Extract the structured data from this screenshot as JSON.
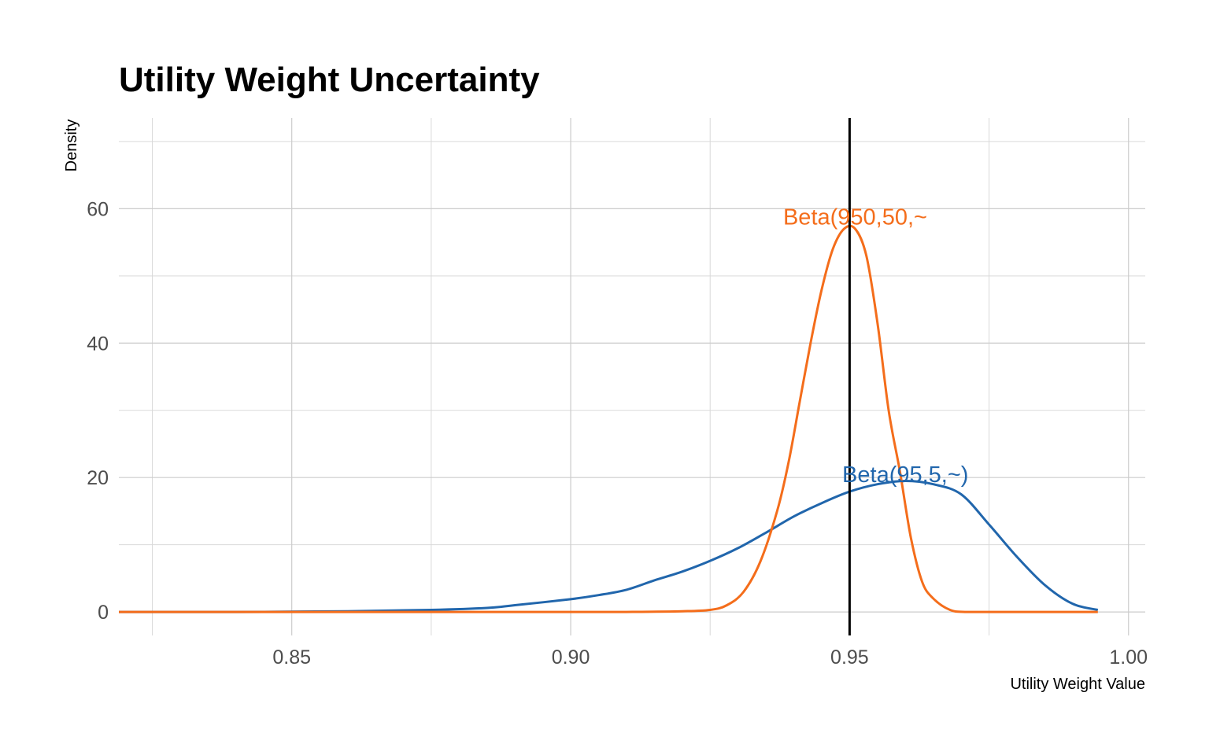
{
  "chart_data": {
    "type": "line",
    "title": "Utility Weight Uncertainty",
    "xlabel": "Utility Weight Value",
    "ylabel": "Density",
    "xlim": [
      0.819,
      1.003
    ],
    "ylim": [
      -3.5,
      73.5
    ],
    "x_ticks": [
      0.85,
      0.9,
      0.95,
      1.0
    ],
    "x_tick_labels": [
      "0.85",
      "0.90",
      "0.95",
      "1.00"
    ],
    "y_ticks": [
      0,
      20,
      40,
      60
    ],
    "y_tick_labels": [
      "0",
      "20",
      "40",
      "60"
    ],
    "grid": true,
    "legend": "none",
    "vline": {
      "x": 0.95,
      "color": "#000000"
    },
    "series": [
      {
        "label": "Beta(95,5,~)",
        "color": "#2166ac",
        "label_x": 0.96,
        "label_y": 20.5,
        "x": [
          0.819,
          0.84,
          0.86,
          0.875,
          0.885,
          0.89,
          0.9,
          0.905,
          0.91,
          0.915,
          0.92,
          0.925,
          0.93,
          0.935,
          0.94,
          0.945,
          0.95,
          0.955,
          0.96,
          0.965,
          0.97,
          0.975,
          0.98,
          0.985,
          0.99,
          0.9945
        ],
        "y": [
          0,
          0,
          0.1,
          0.3,
          0.6,
          1.0,
          1.9,
          2.5,
          3.3,
          4.7,
          6.0,
          7.6,
          9.5,
          11.8,
          14.2,
          16.2,
          17.9,
          19.0,
          19.5,
          19.0,
          17.5,
          13.0,
          8.2,
          4.0,
          1.2,
          0.3
        ]
      },
      {
        "label": "Beta(950,50,~",
        "color": "#f46d1b",
        "label_x": 0.951,
        "label_y": 58.8,
        "x": [
          0.819,
          0.84,
          0.86,
          0.88,
          0.9,
          0.91,
          0.92,
          0.925,
          0.928,
          0.931,
          0.934,
          0.937,
          0.939,
          0.941,
          0.943,
          0.945,
          0.947,
          0.949,
          0.951,
          0.953,
          0.955,
          0.957,
          0.959,
          0.961,
          0.963,
          0.965,
          0.968,
          0.971,
          0.98,
          0.9945
        ],
        "y": [
          0,
          0,
          0,
          0,
          0,
          0,
          0.1,
          0.3,
          1.0,
          3.0,
          7.5,
          15.0,
          22.0,
          31.0,
          40.0,
          48.0,
          54.0,
          57.0,
          57.0,
          53.0,
          43.0,
          30.0,
          21.0,
          11.0,
          4.5,
          2.0,
          0.3,
          0.0,
          0,
          0
        ]
      }
    ]
  }
}
